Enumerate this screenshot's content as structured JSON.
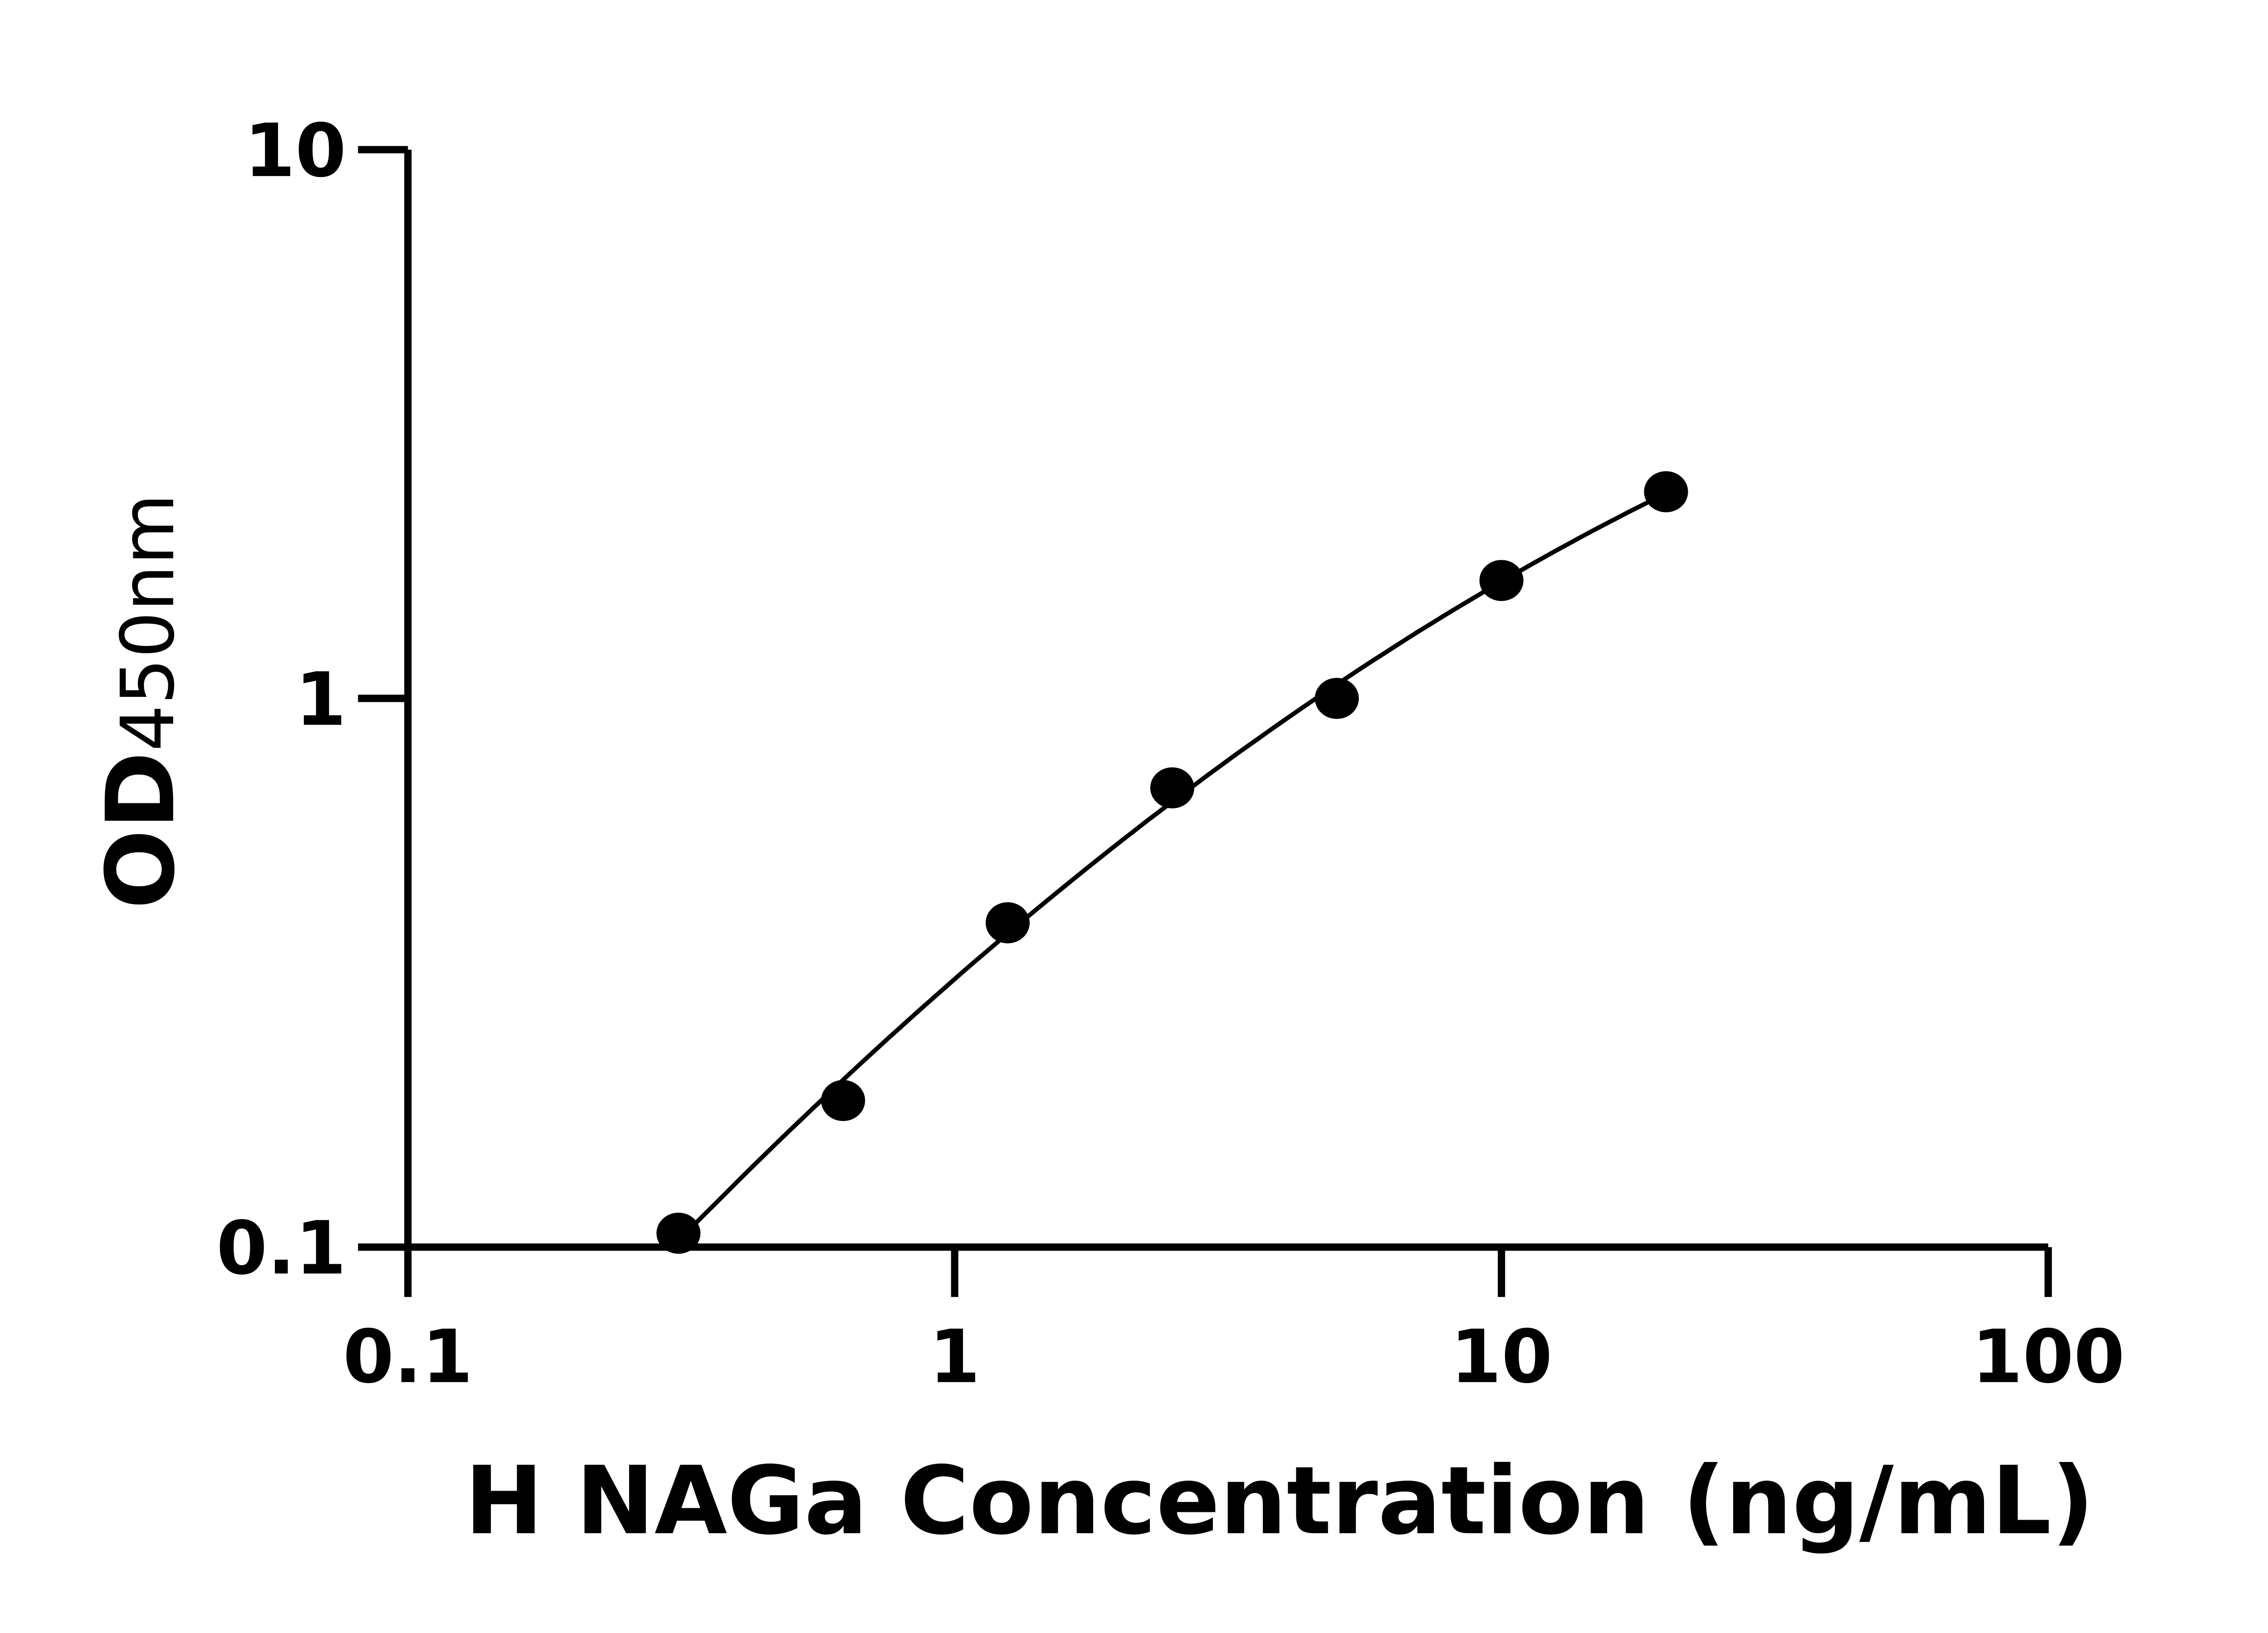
{
  "chart_data": {
    "type": "scatter",
    "xlabel": "H NAGa Concentration (ng/mL)",
    "ylabel_main": "OD",
    "ylabel_sub": "450nm",
    "x_scale": "log",
    "y_scale": "log",
    "xlim": [
      0.1,
      100
    ],
    "ylim": [
      0.1,
      10
    ],
    "x_ticks": [
      "0.1",
      "1",
      "10",
      "100"
    ],
    "y_ticks": [
      "0.1",
      "1",
      "10"
    ],
    "grid": false,
    "points": [
      {
        "x": 0.3125,
        "y": 0.106
      },
      {
        "x": 0.625,
        "y": 0.185
      },
      {
        "x": 1.25,
        "y": 0.39
      },
      {
        "x": 2.5,
        "y": 0.687
      },
      {
        "x": 5,
        "y": 1.0
      },
      {
        "x": 10,
        "y": 1.64
      },
      {
        "x": 20,
        "y": 2.38
      }
    ],
    "fit_curve": true,
    "colors": {
      "points": "#000000",
      "line": "#000000"
    }
  }
}
